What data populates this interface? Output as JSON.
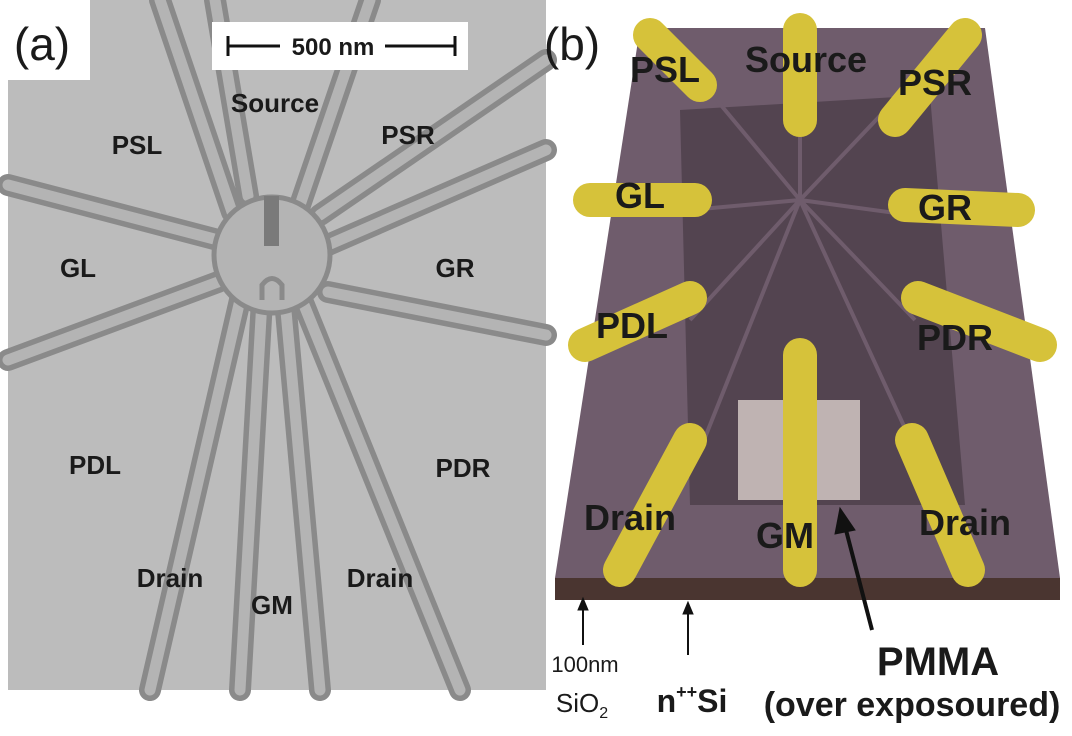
{
  "panel_a": {
    "label": "(a)",
    "scale_bar": "500 nm",
    "electrodes": [
      "Source",
      "PSL",
      "PSR",
      "GL",
      "GR",
      "PDL",
      "PDR",
      "Drain",
      "GM",
      "Drain"
    ]
  },
  "panel_b": {
    "label": "(b)",
    "electrodes": [
      "Source",
      "PSL",
      "PSR",
      "GL",
      "GR",
      "PDL",
      "PDR",
      "Drain",
      "GM",
      "Drain"
    ],
    "annotations": {
      "oxide_thickness": "100nm",
      "oxide": {
        "base": "SiO",
        "sub": "2"
      },
      "substrate": {
        "base": "n",
        "sup": "++",
        "rest": "Si"
      },
      "resist": "PMMA",
      "resist_note": "(over exposoured)"
    }
  }
}
